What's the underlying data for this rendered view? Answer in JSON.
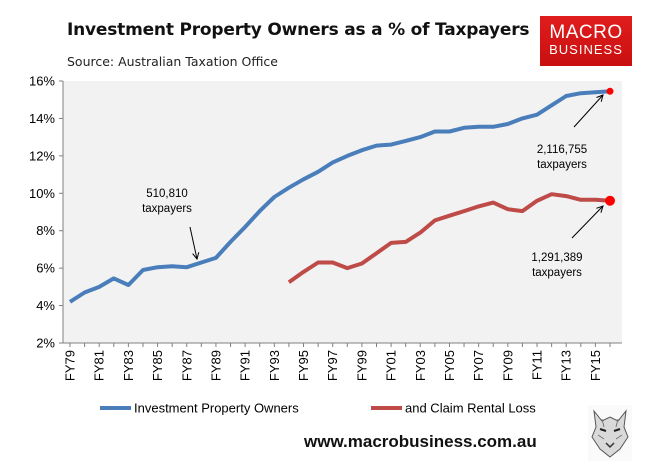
{
  "title": "Investment Property Owners as a % of Taxpayers",
  "subtitle": "Source: Australian Taxation Office",
  "logo": {
    "line1": "MACRO",
    "line2": "BUSINESS"
  },
  "website": "www.macrobusiness.com.au",
  "colors": {
    "series1": "#4a7ebb",
    "series2": "#be4b48",
    "dot": "#ff0000",
    "plot_bg": "#f2f2f2"
  },
  "chart_data": {
    "type": "line",
    "title": "Investment Property Owners as a % of Taxpayers",
    "xlabel": "",
    "ylabel": "",
    "ylim": [
      2,
      16
    ],
    "y_ticks": [
      2,
      4,
      6,
      8,
      10,
      12,
      14,
      16
    ],
    "y_tick_labels": [
      "2%",
      "4%",
      "6%",
      "8%",
      "10%",
      "12%",
      "14%",
      "16%"
    ],
    "grid": false,
    "legend": "bottom",
    "categories": [
      "FY79",
      "FY80",
      "FY81",
      "FY82",
      "FY83",
      "FY84",
      "FY85",
      "FY86",
      "FY87",
      "FY88",
      "FY89",
      "FY90",
      "FY91",
      "FY92",
      "FY93",
      "FY94",
      "FY95",
      "FY96",
      "FY97",
      "FY98",
      "FY99",
      "FY00",
      "FY01",
      "FY02",
      "FY03",
      "FY04",
      "FY05",
      "FY06",
      "FY07",
      "FY08",
      "FY09",
      "FY10",
      "FY11",
      "FY12",
      "FY13",
      "FY14",
      "FY15",
      "FY16"
    ],
    "tick_labels": [
      "FY79",
      "FY81",
      "FY83",
      "FY85",
      "FY87",
      "FY89",
      "FY91",
      "FY93",
      "FY95",
      "FY97",
      "FY99",
      "FY01",
      "FY03",
      "FY05",
      "FY07",
      "FY09",
      "FY11",
      "FY13",
      "FY15"
    ],
    "series": [
      {
        "name": "Investment Property Owners",
        "values": [
          4.2,
          4.7,
          5.0,
          5.45,
          5.1,
          5.9,
          6.05,
          6.1,
          6.05,
          6.3,
          6.55,
          7.4,
          8.2,
          9.05,
          9.8,
          10.3,
          10.75,
          11.15,
          11.65,
          12.0,
          12.3,
          12.55,
          12.6,
          12.8,
          13.0,
          13.3,
          13.3,
          13.5,
          13.55,
          13.55,
          13.7,
          14.0,
          14.2,
          14.7,
          15.2,
          15.35,
          15.4,
          15.45
        ]
      },
      {
        "name": "and Claim Rental Loss",
        "values": [
          null,
          null,
          null,
          null,
          null,
          null,
          null,
          null,
          null,
          null,
          null,
          null,
          null,
          null,
          null,
          5.25,
          5.8,
          6.3,
          6.3,
          6.0,
          6.25,
          6.8,
          7.35,
          7.4,
          7.9,
          8.55,
          8.8,
          9.05,
          9.3,
          9.5,
          9.15,
          9.05,
          9.6,
          9.95,
          9.85,
          9.65,
          9.65,
          9.6
        ]
      }
    ],
    "annotations": [
      {
        "label_line1": "510,810",
        "label_line2": "taxpayers",
        "series": 0,
        "category": "FY88"
      },
      {
        "label_line1": "2,116,755",
        "label_line2": "taxpayers",
        "series": 0,
        "category": "FY16"
      },
      {
        "label_line1": "1,291,389",
        "label_line2": "taxpayers",
        "series": 1,
        "category": "FY16"
      }
    ]
  }
}
